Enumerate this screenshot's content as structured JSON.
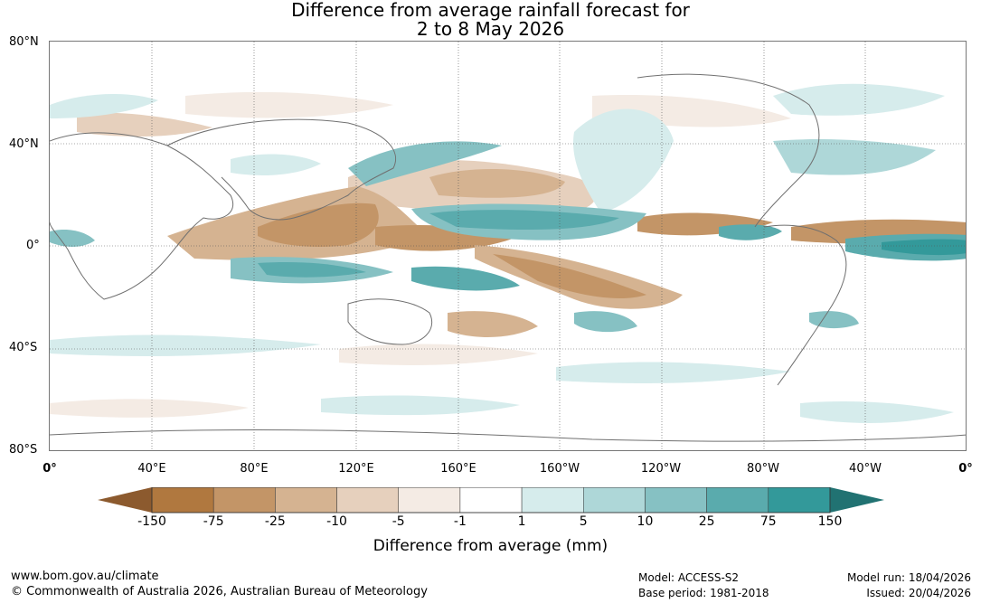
{
  "title": {
    "line1": "Difference from average rainfall forecast for",
    "line2": "2 to 8 May 2026"
  },
  "map": {
    "lat_labels": [
      "80°N",
      "40°N",
      "0°",
      "40°S",
      "80°S"
    ],
    "lon_labels": [
      "0°",
      "40°E",
      "80°E",
      "120°E",
      "160°E",
      "160°W",
      "120°W",
      "80°W",
      "40°W",
      "0°"
    ],
    "projection": "equirectangular",
    "grid": true,
    "anomaly_bands": [
      {
        "name": "equatorial-pacific-wet",
        "category": "25 to 75"
      },
      {
        "name": "maritime-continent-dry",
        "category": "-25 to -10"
      },
      {
        "name": "south-pacific-dry",
        "category": "-25 to -10"
      },
      {
        "name": "indian-ocean-wet",
        "category": "25 to 75"
      },
      {
        "name": "equatorial-atlantic-wet",
        "category": "25 to 75"
      },
      {
        "name": "north-pacific-dry",
        "category": "-10 to -5"
      }
    ]
  },
  "colorbar": {
    "labels": [
      "-150",
      "-75",
      "-25",
      "-10",
      "-5",
      "-1",
      "1",
      "5",
      "10",
      "25",
      "75",
      "150"
    ],
    "colors": [
      "#8c5a2e",
      "#b0783f",
      "#c39567",
      "#d5b391",
      "#e6d0bd",
      "#f4ebe4",
      "#ffffff",
      "#d6ecec",
      "#aed7d8",
      "#86c1c3",
      "#5aabad",
      "#33999a",
      "#217272"
    ],
    "title": "Difference from average (mm)"
  },
  "footer": {
    "url": "www.bom.gov.au/climate",
    "copyright": "© Commonwealth of Australia 2026, Australian Bureau of Meteorology",
    "model": "Model: ACCESS-S2",
    "base_period": "Base period: 1981-2018",
    "model_run": "Model run: 18/04/2026",
    "issued": "Issued: 20/04/2026"
  }
}
